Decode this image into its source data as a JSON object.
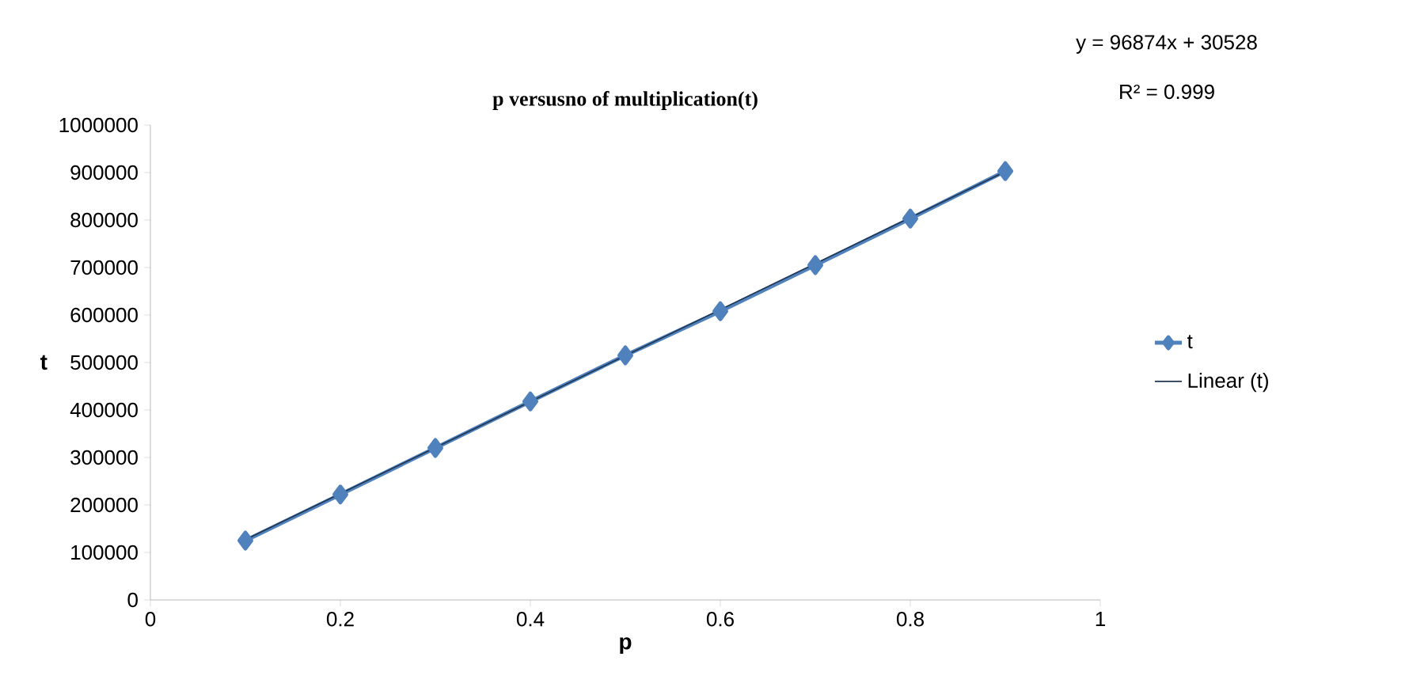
{
  "chart_data": {
    "type": "line",
    "title": "p versusno of multiplication(t)",
    "xlabel": "p",
    "ylabel": "t",
    "x": [
      0.1,
      0.2,
      0.3,
      0.4,
      0.5,
      0.6,
      0.7,
      0.8,
      0.9
    ],
    "series": [
      {
        "name": "t",
        "color": "#4f81bd",
        "marker": "diamond",
        "values": [
          125000,
          222000,
          320000,
          418000,
          515000,
          608000,
          705000,
          803000,
          903000
        ]
      },
      {
        "name": "Linear (t)",
        "type": "line",
        "color": "#1f3550",
        "marker": "none",
        "x": [
          0.1,
          0.9
        ],
        "values": [
          127000,
          902000
        ]
      }
    ],
    "xlim": [
      0,
      1
    ],
    "ylim": [
      0,
      1000000
    ],
    "xticks": [
      0,
      0.2,
      0.4,
      0.6,
      0.8,
      1
    ],
    "yticks": [
      0,
      100000,
      200000,
      300000,
      400000,
      500000,
      600000,
      700000,
      800000,
      900000,
      1000000
    ],
    "annotations": [
      "y = 96874x + 30528",
      "R² = 0.999"
    ],
    "legend": "right",
    "grid": false
  }
}
